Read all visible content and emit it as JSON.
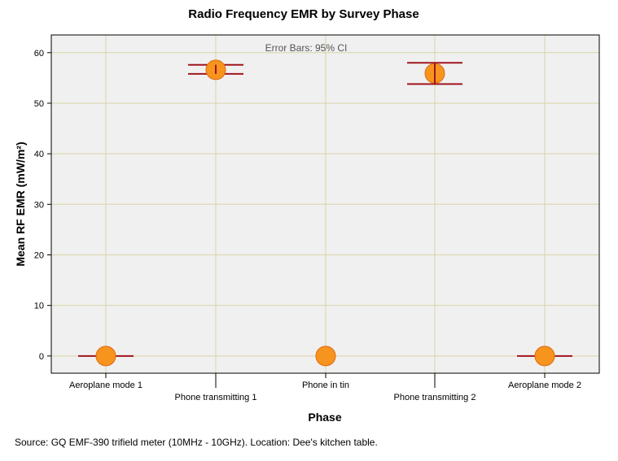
{
  "chart_data": {
    "type": "scatter",
    "title": "Radio Frequency EMR by Survey Phase",
    "xlabel": "Phase",
    "ylabel": "Mean RF EMR (mW/m²)",
    "annotation": "Error Bars: 95% CI",
    "categories": [
      "Aeroplane mode 1",
      "Phone transmitting 1",
      "Phone in tin",
      "Phone transmitting 2",
      "Aeroplane mode 2"
    ],
    "values": [
      0,
      56.6,
      0,
      55.9,
      0
    ],
    "ci_low": [
      0,
      55.8,
      0,
      53.8,
      0
    ],
    "ci_high": [
      0,
      57.6,
      0,
      58.0,
      0
    ],
    "ylim": [
      -3.4,
      63.5
    ],
    "yticks": [
      0,
      10,
      20,
      30,
      40,
      50,
      60
    ],
    "grid": true,
    "colors": {
      "plot_bg": "#f0f0f0",
      "grid": "#d8d4a8",
      "marker_fill": "#f7941d",
      "marker_stroke": "#e06a10",
      "error_bar": "#a0151e"
    }
  },
  "footer": {
    "source": "Source: GQ EMF-390 trifield meter (10MHz - 10GHz). Location: Dee's kitchen table."
  }
}
